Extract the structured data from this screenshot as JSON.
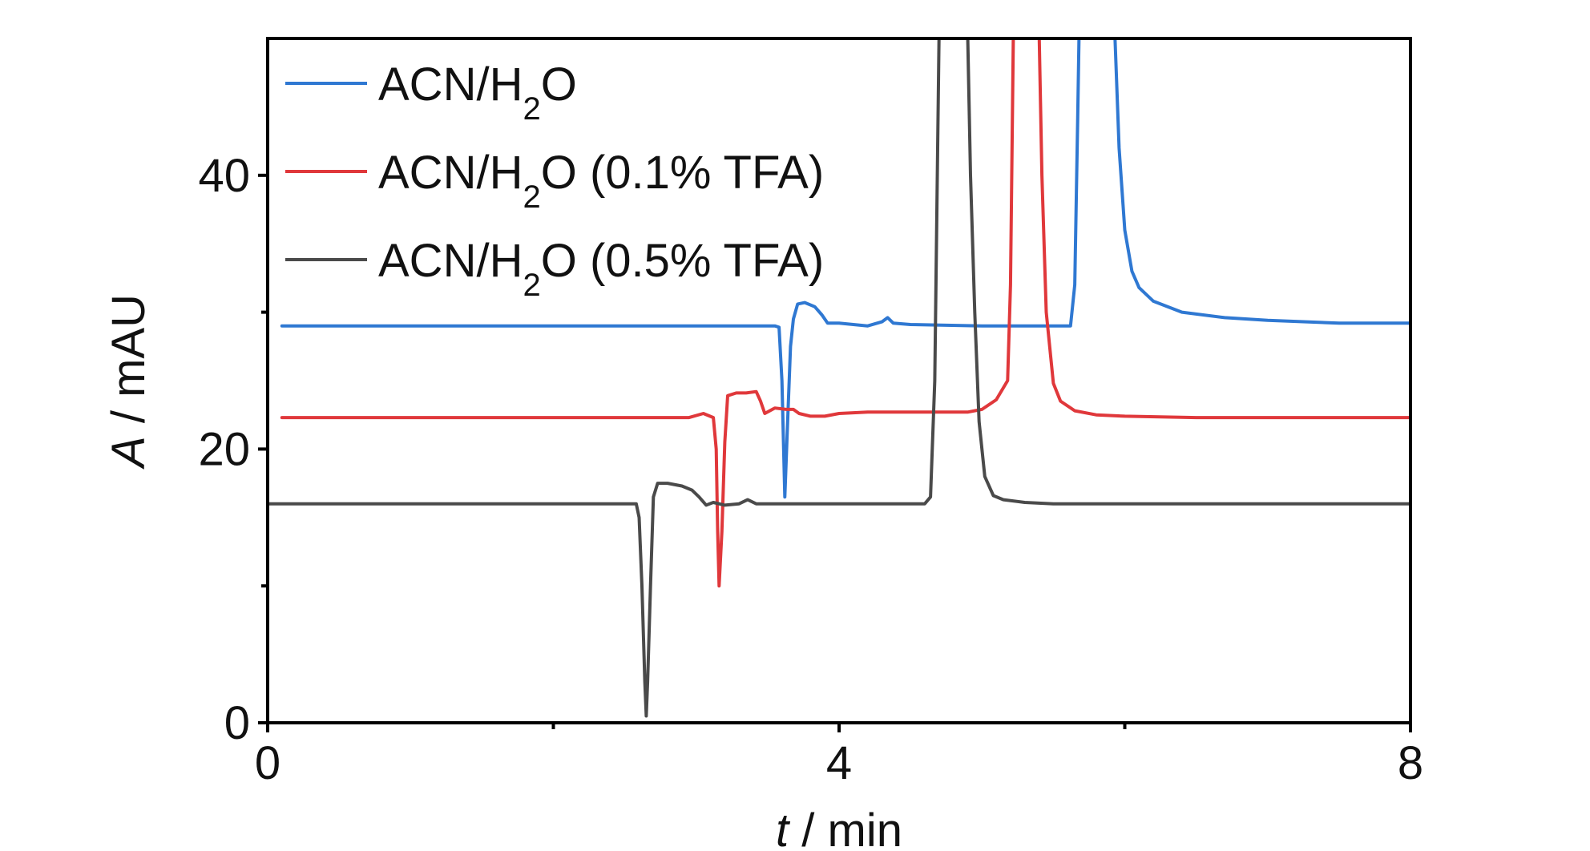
{
  "chart_data": {
    "type": "line",
    "xlabel_var": "t",
    "xlabel_unit": " / min",
    "ylabel_var": "A",
    "ylabel_unit": " / mAU",
    "xlim": [
      0,
      8
    ],
    "ylim": [
      0,
      50
    ],
    "xticks": [
      0,
      4,
      8
    ],
    "xticks_minor": [
      2,
      6
    ],
    "yticks": [
      0,
      20,
      40
    ],
    "yticks_minor": [
      10,
      30
    ],
    "grid": false,
    "legend_position": "top-left",
    "series": [
      {
        "name": "ACN/H2O",
        "name_base": "ACN/H",
        "name_sub": "2",
        "name_tail": "O",
        "color": "#2f78d2",
        "points": [
          [
            0.1,
            29.0
          ],
          [
            0.5,
            29.0
          ],
          [
            1.0,
            29.0
          ],
          [
            2.0,
            29.0
          ],
          [
            3.0,
            29.0
          ],
          [
            3.55,
            29.0
          ],
          [
            3.58,
            28.9
          ],
          [
            3.6,
            25.0
          ],
          [
            3.62,
            16.5
          ],
          [
            3.64,
            22.0
          ],
          [
            3.66,
            27.5
          ],
          [
            3.68,
            29.5
          ],
          [
            3.71,
            30.6
          ],
          [
            3.76,
            30.7
          ],
          [
            3.83,
            30.4
          ],
          [
            3.88,
            29.8
          ],
          [
            3.92,
            29.2
          ],
          [
            4.0,
            29.2
          ],
          [
            4.2,
            29.0
          ],
          [
            4.3,
            29.3
          ],
          [
            4.34,
            29.6
          ],
          [
            4.38,
            29.2
          ],
          [
            4.5,
            29.1
          ],
          [
            5.0,
            29.0
          ],
          [
            5.5,
            29.0
          ],
          [
            5.62,
            29.0
          ],
          [
            5.65,
            32.0
          ],
          [
            5.67,
            44.0
          ],
          [
            5.68,
            50.5
          ],
          [
            5.93,
            50.5
          ],
          [
            5.96,
            42.0
          ],
          [
            6.0,
            36.0
          ],
          [
            6.05,
            33.0
          ],
          [
            6.1,
            31.8
          ],
          [
            6.2,
            30.8
          ],
          [
            6.4,
            30.0
          ],
          [
            6.7,
            29.6
          ],
          [
            7.0,
            29.4
          ],
          [
            7.5,
            29.2
          ],
          [
            8.0,
            29.2
          ]
        ]
      },
      {
        "name": "ACN/H2O (0.1% TFA)",
        "name_base": "ACN/H",
        "name_sub": "2",
        "name_tail": "O (0.1% TFA)",
        "color": "#e0383b",
        "points": [
          [
            0.1,
            22.3
          ],
          [
            0.5,
            22.3
          ],
          [
            1.0,
            22.3
          ],
          [
            1.5,
            22.3
          ],
          [
            2.0,
            22.3
          ],
          [
            2.5,
            22.3
          ],
          [
            2.95,
            22.3
          ],
          [
            3.05,
            22.6
          ],
          [
            3.12,
            22.3
          ],
          [
            3.14,
            20.0
          ],
          [
            3.15,
            14.0
          ],
          [
            3.16,
            10.0
          ],
          [
            3.18,
            14.0
          ],
          [
            3.2,
            20.5
          ],
          [
            3.22,
            23.9
          ],
          [
            3.28,
            24.1
          ],
          [
            3.35,
            24.1
          ],
          [
            3.42,
            24.2
          ],
          [
            3.45,
            23.5
          ],
          [
            3.48,
            22.6
          ],
          [
            3.55,
            23.0
          ],
          [
            3.63,
            22.9
          ],
          [
            3.68,
            22.9
          ],
          [
            3.72,
            22.6
          ],
          [
            3.8,
            22.4
          ],
          [
            3.9,
            22.4
          ],
          [
            4.0,
            22.6
          ],
          [
            4.2,
            22.7
          ],
          [
            4.6,
            22.7
          ],
          [
            4.9,
            22.7
          ],
          [
            5.0,
            22.9
          ],
          [
            5.1,
            23.6
          ],
          [
            5.18,
            25.0
          ],
          [
            5.2,
            32.0
          ],
          [
            5.22,
            50.5
          ],
          [
            5.4,
            50.5
          ],
          [
            5.42,
            40.0
          ],
          [
            5.45,
            30.0
          ],
          [
            5.5,
            24.8
          ],
          [
            5.55,
            23.5
          ],
          [
            5.65,
            22.8
          ],
          [
            5.8,
            22.5
          ],
          [
            6.0,
            22.4
          ],
          [
            6.5,
            22.3
          ],
          [
            7.0,
            22.3
          ],
          [
            8.0,
            22.3
          ]
        ]
      },
      {
        "name": "ACN/H2O (0.5% TFA)",
        "name_base": "ACN/H",
        "name_sub": "2",
        "name_tail": "O (0.5% TFA)",
        "color": "#4a4a4a",
        "points": [
          [
            0.0,
            16.0
          ],
          [
            0.5,
            16.0
          ],
          [
            1.0,
            16.0
          ],
          [
            1.5,
            16.0
          ],
          [
            2.0,
            16.0
          ],
          [
            2.5,
            16.0
          ],
          [
            2.58,
            16.0
          ],
          [
            2.6,
            15.0
          ],
          [
            2.62,
            10.0
          ],
          [
            2.64,
            3.0
          ],
          [
            2.65,
            0.5
          ],
          [
            2.66,
            3.0
          ],
          [
            2.68,
            10.0
          ],
          [
            2.7,
            16.5
          ],
          [
            2.73,
            17.5
          ],
          [
            2.8,
            17.5
          ],
          [
            2.9,
            17.3
          ],
          [
            2.97,
            17.0
          ],
          [
            3.02,
            16.5
          ],
          [
            3.07,
            15.9
          ],
          [
            3.12,
            16.1
          ],
          [
            3.2,
            15.9
          ],
          [
            3.3,
            16.0
          ],
          [
            3.36,
            16.3
          ],
          [
            3.42,
            16.0
          ],
          [
            3.5,
            16.0
          ],
          [
            3.8,
            16.0
          ],
          [
            4.2,
            16.0
          ],
          [
            4.5,
            16.0
          ],
          [
            4.6,
            16.0
          ],
          [
            4.64,
            16.5
          ],
          [
            4.67,
            25.0
          ],
          [
            4.7,
            50.5
          ],
          [
            4.9,
            50.5
          ],
          [
            4.92,
            40.0
          ],
          [
            4.95,
            30.0
          ],
          [
            4.98,
            22.0
          ],
          [
            5.02,
            18.0
          ],
          [
            5.08,
            16.6
          ],
          [
            5.15,
            16.3
          ],
          [
            5.3,
            16.1
          ],
          [
            5.5,
            16.0
          ],
          [
            6.0,
            16.0
          ],
          [
            7.0,
            16.0
          ],
          [
            8.0,
            16.0
          ]
        ]
      }
    ]
  }
}
